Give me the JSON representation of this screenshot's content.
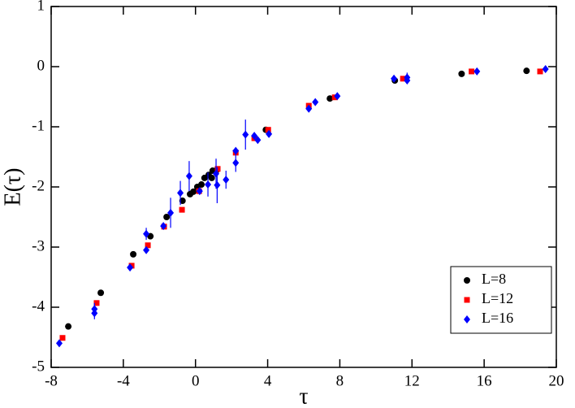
{
  "chart_data": {
    "type": "scatter",
    "x_label": "τ",
    "y_label": "E(τ)",
    "xlim": [
      -8,
      20
    ],
    "ylim": [
      -5,
      1
    ],
    "xticks": [
      -8,
      -4,
      0,
      4,
      8,
      12,
      16,
      20
    ],
    "yticks": [
      -5,
      -4,
      -3,
      -2,
      -1,
      0,
      1
    ],
    "legend": "lower right",
    "series": [
      {
        "name": "L=8",
        "color": "#000000",
        "marker": "circle",
        "x": [
          -7.05,
          -5.25,
          -3.45,
          -2.5,
          -1.6,
          -0.72,
          -0.3,
          -0.12,
          0.1,
          0.33,
          0.5,
          0.73,
          0.9,
          0.95,
          1.17,
          3.9,
          7.45,
          11.05,
          14.75,
          18.35
        ],
        "values": [
          -4.32,
          -3.76,
          -3.12,
          -2.82,
          -2.5,
          -2.23,
          -2.12,
          -2.08,
          -2.0,
          -1.96,
          -1.85,
          -1.8,
          -1.85,
          -1.73,
          -1.72,
          -1.05,
          -0.53,
          -0.23,
          -0.12,
          -0.07
        ]
      },
      {
        "name": "L=12",
        "color": "#ff0000",
        "marker": "square",
        "x": [
          -7.37,
          -5.48,
          -3.54,
          -2.64,
          -1.74,
          -0.75,
          0.2,
          1.23,
          2.23,
          3.26,
          4.03,
          6.28,
          7.72,
          11.5,
          15.3,
          19.1
        ],
        "values": [
          -4.51,
          -3.93,
          -3.31,
          -2.97,
          -2.66,
          -2.38,
          -2.07,
          -1.7,
          -1.43,
          -1.19,
          -1.05,
          -0.65,
          -0.51,
          -0.2,
          -0.08,
          -0.08
        ]
      },
      {
        "name": "L=16",
        "color": "#0000ff",
        "marker": "diamond",
        "x": [
          -7.55,
          -5.6,
          -5.6,
          -3.63,
          -2.73,
          -2.73,
          -1.78,
          -1.38,
          -0.84,
          -0.35,
          0.23,
          0.69,
          1.14,
          1.2,
          1.69,
          2.23,
          2.23,
          2.77,
          3.26,
          3.45,
          4.07,
          6.28,
          6.64,
          7.86,
          11.0,
          11.73,
          11.73,
          15.6,
          19.4
        ],
        "values": [
          -4.6,
          -4.03,
          -4.1,
          -3.34,
          -3.05,
          -2.78,
          -2.65,
          -2.43,
          -2.1,
          -1.82,
          -2.07,
          -1.96,
          -1.78,
          -1.97,
          -1.88,
          -1.6,
          -1.4,
          -1.13,
          -1.15,
          -1.22,
          -1.12,
          -0.7,
          -0.59,
          -0.49,
          -0.2,
          -0.18,
          -0.23,
          -0.08,
          -0.04
        ],
        "errors": [
          0.05,
          0.1,
          0.1,
          0.05,
          0.05,
          0.1,
          0.05,
          0.25,
          0.2,
          0.25,
          0.05,
          0.2,
          0.25,
          0.3,
          0.15,
          0.15,
          0.05,
          0.25,
          0.05,
          0.05,
          0.05,
          0.05,
          0.05,
          0.05,
          0.05,
          0.08,
          0.05,
          0.05,
          0.05
        ]
      }
    ]
  }
}
